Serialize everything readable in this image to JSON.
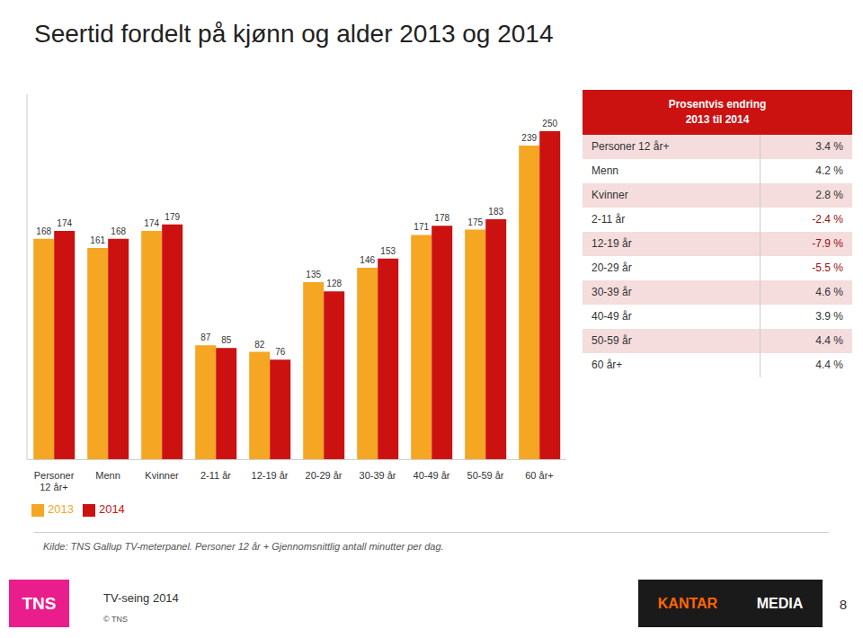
{
  "chart_data": [
    {
      "type": "bar",
      "title": "Seertid fordelt på kjønn og alder 2013 og 2014",
      "categories": [
        "Personer\n12 år+",
        "Menn",
        "Kvinner",
        "2-11 år",
        "12-19 år",
        "20-29 år",
        "30-39 år",
        "40-49 år",
        "50-59 år",
        "60 år+"
      ],
      "series": [
        {
          "name": "2013",
          "color": "#F5A623",
          "values": [
            168,
            161,
            174,
            87,
            82,
            135,
            146,
            171,
            175,
            239
          ]
        },
        {
          "name": "2014",
          "color": "#CC1111",
          "values": [
            174,
            168,
            179,
            85,
            76,
            128,
            153,
            178,
            183,
            250
          ]
        }
      ],
      "ylim": [
        0,
        278
      ],
      "grid": false,
      "legend": "bottom",
      "data_labels": true,
      "tick_labels": "x",
      "annotations": [
        "Kilde: TNS Gallup TV-meterpanel. Personer 12 år + Gjennomsnittlig antall minutter per dag.",
        "TV-seing 2014",
        "© TNS",
        "TNS",
        "KANTAR",
        "MEDIA",
        "8"
      ]
    },
    {
      "type": "table",
      "title": "Prosentvis endring\n2013 til 2014",
      "color": "#CC1111",
      "colors": [
        "#F5DDDD",
        "#FFFFFF",
        "#F5DDDD",
        "#FFFFFF",
        "#F5DDDD",
        "#FFFFFF",
        "#F5DDDD",
        "#FFFFFF",
        "#F5DDDD",
        "#FFFFFF"
      ],
      "categories": [
        "Personer 12 år+",
        "Menn",
        "Kvinner",
        "2-11 år",
        "12-19 år",
        "20-29 år",
        "30-39 år",
        "40-49 år",
        "50-59 år",
        "60 år+"
      ],
      "values": [
        3.4,
        4.2,
        2.8,
        -2.4,
        -7.9,
        -5.5,
        4.6,
        3.9,
        4.4,
        4.4
      ],
      "value_labels": [
        "3.4 %",
        "4.2 %",
        "2.8 %",
        "-2.4 %",
        "-7.9 %",
        "-5.5 %",
        "4.6 %",
        "3.9 %",
        "4.4 %",
        "4.4 %"
      ]
    }
  ]
}
